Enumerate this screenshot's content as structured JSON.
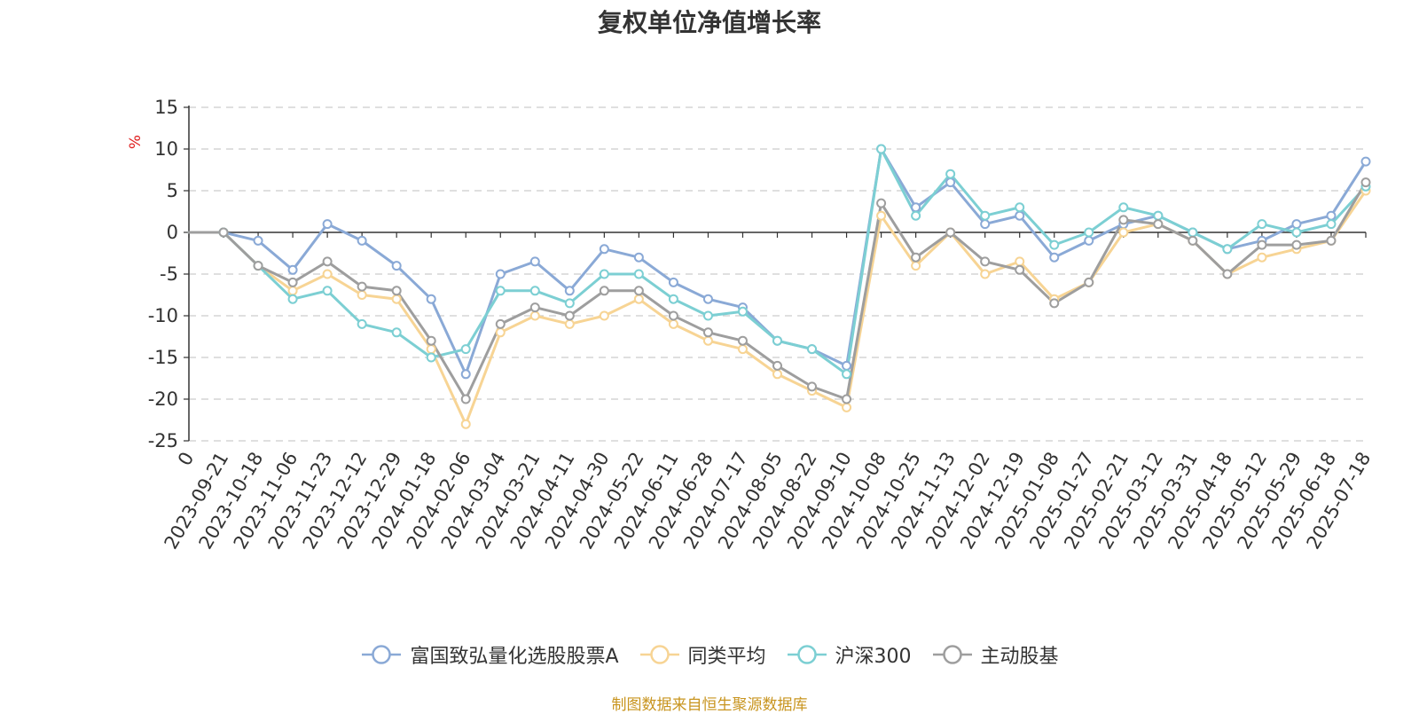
{
  "chart_data": {
    "type": "line",
    "title": "复权单位净值增长率",
    "ylabel": "%",
    "ylim": [
      -25,
      15
    ],
    "yticks": [
      -25,
      -20,
      -15,
      -10,
      -5,
      0,
      5,
      10,
      15
    ],
    "grid": true,
    "legend_position": "bottom-center",
    "categories": [
      "2023-09-21",
      "2023-10-18",
      "2023-11-06",
      "2023-11-23",
      "2023-12-12",
      "2023-12-29",
      "2024-01-18",
      "2024-02-06",
      "2024-03-04",
      "2024-03-21",
      "2024-04-11",
      "2024-04-30",
      "2024-05-22",
      "2024-06-11",
      "2024-06-28",
      "2024-07-17",
      "2024-08-05",
      "2024-08-22",
      "2024-09-10",
      "2024-10-08",
      "2024-10-25",
      "2024-11-13",
      "2024-12-02",
      "2024-12-19",
      "2025-01-08",
      "2025-01-27",
      "2025-02-21",
      "2025-03-12",
      "2025-03-31",
      "2025-04-18",
      "2025-05-12",
      "2025-05-29",
      "2025-06-18",
      "2025-07-18"
    ],
    "series": [
      {
        "name": "富国致弘量化选股股票A",
        "color": "#8aa9d6",
        "values": [
          0,
          -1,
          -4.5,
          1,
          -1,
          -4,
          -8,
          -17,
          -5,
          -3.5,
          -7,
          -2,
          -3,
          -6,
          -8,
          -9,
          -13,
          -14,
          -16,
          10,
          3,
          6,
          1,
          2,
          -3,
          -1,
          1,
          2,
          0,
          -2,
          -1,
          1,
          2,
          8.5
        ]
      },
      {
        "name": "同类平均",
        "color": "#f7d494",
        "values": [
          0,
          -4,
          -7,
          -5,
          -7.5,
          -8,
          -14,
          -23,
          -12,
          -10,
          -11,
          -10,
          -8,
          -11,
          -13,
          -14,
          -17,
          -19,
          -21,
          2,
          -4,
          0,
          -5,
          -3.5,
          -8,
          -6,
          0,
          1,
          -1,
          -5,
          -3,
          -2,
          -1,
          5
        ]
      },
      {
        "name": "沪深300",
        "color": "#7ccfd3",
        "values": [
          0,
          -4,
          -8,
          -7,
          -11,
          -12,
          -15,
          -14,
          -7,
          -7,
          -8.5,
          -5,
          -5,
          -8,
          -10,
          -9.5,
          -13,
          -14,
          -17,
          10,
          2,
          7,
          2,
          3,
          -1.5,
          0,
          3,
          2,
          0,
          -2,
          1,
          0,
          1,
          5.5
        ]
      },
      {
        "name": "主动股基",
        "color": "#9e9e9e",
        "values": [
          0,
          -4,
          -6,
          -3.5,
          -6.5,
          -7,
          -13,
          -20,
          -11,
          -9,
          -10,
          -7,
          -7,
          -10,
          -12,
          -13,
          -16,
          -18.5,
          -20,
          3.5,
          -3,
          0,
          -3.5,
          -4.5,
          -8.5,
          -6,
          1.5,
          1,
          -1,
          -5,
          -1.5,
          -1.5,
          -1,
          6
        ]
      }
    ],
    "zero_label": "0",
    "source_note": "制图数据来自恒生聚源数据库"
  }
}
